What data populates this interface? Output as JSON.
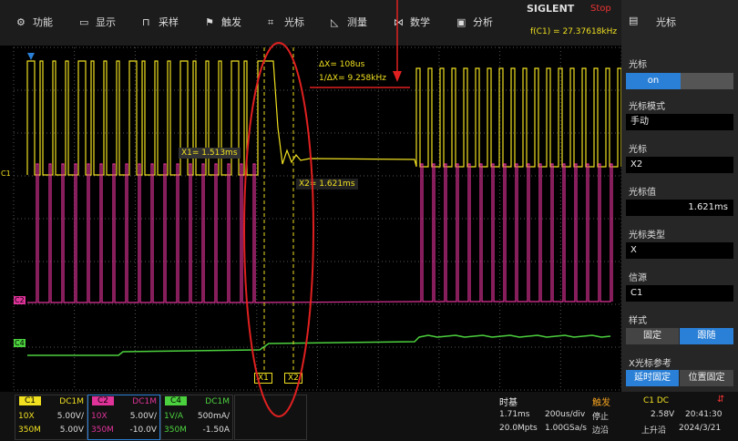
{
  "menu": [
    "功能",
    "显示",
    "采样",
    "触发",
    "光标",
    "测量",
    "数学",
    "分析"
  ],
  "brand": {
    "logo": "SIGLENT",
    "status": "Stop",
    "frequency": "f(C1) = 27.37618kHz"
  },
  "panel": {
    "title": "光标",
    "toggle": "on",
    "sections": [
      {
        "label": "光标模式",
        "value": "手动"
      },
      {
        "label": "光标",
        "value": "X2"
      },
      {
        "label": "光标值",
        "value": "1.621ms"
      },
      {
        "label": "光标类型",
        "value": "X"
      },
      {
        "label": "信源",
        "value": "C1"
      }
    ],
    "style": {
      "label": "样式",
      "options": [
        "固定",
        "跟随"
      ]
    },
    "x_ref": {
      "label": "X光标参考",
      "options": [
        "延时固定",
        "位置固定"
      ]
    }
  },
  "cursors": {
    "delta_x": "ΔX= 108us",
    "inverse": "1/ΔX= 9.258kHz",
    "x1": "X1= 1.513ms",
    "x2": "X2= 1.621ms",
    "x1_tag": "X1",
    "x2_tag": "X2"
  },
  "channel_markers": [
    "C1",
    "C2",
    "C4"
  ],
  "channels": [
    {
      "name": "C1",
      "coupling": "DC1M",
      "probe": "10X",
      "scale": "5.00V/",
      "bandwidth": "350M",
      "offset": "5.00V"
    },
    {
      "name": "C2",
      "coupling": "DC1M",
      "probe": "10X",
      "scale": "5.00V/",
      "bandwidth": "350M",
      "offset": "-10.0V"
    },
    {
      "name": "C4",
      "coupling": "DC1M",
      "probe": "1V/A",
      "scale": "500mA/",
      "bandwidth": "350M",
      "offset": "-1.50A"
    }
  ],
  "timebase": {
    "label": "时基",
    "delay": "1.71ms",
    "scale": "200us/div",
    "memory": "20.0Mpts",
    "rate": "1.00GSa/s"
  },
  "trigger": {
    "label": "触发",
    "source": "C1 DC",
    "state": "停止",
    "level": "2.58V",
    "type": "边沿",
    "slope": "上升沿"
  },
  "clock": {
    "time": "20:41:30",
    "date": "2024/3/21"
  }
}
